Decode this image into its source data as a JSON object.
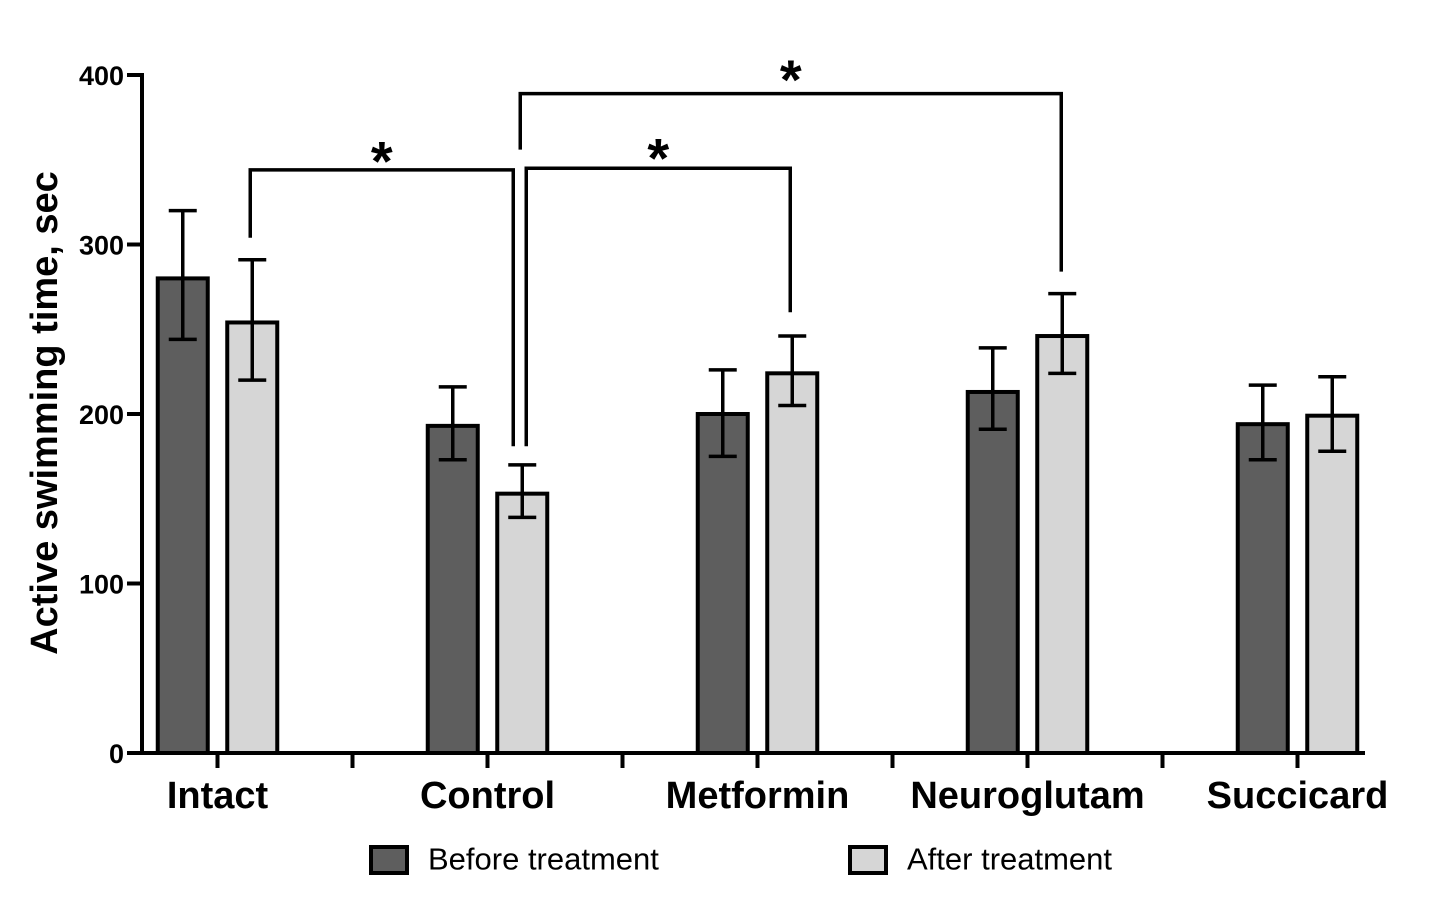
{
  "chart_data": {
    "type": "bar",
    "title": "",
    "xlabel": "",
    "ylabel": "Active swimming time, sec",
    "ylim": [
      0,
      400
    ],
    "yticks": [
      0,
      100,
      200,
      300,
      400
    ],
    "grid": false,
    "error_bars": true,
    "legend_position": "bottom",
    "background_color": "#ffffff",
    "axis_color": "#000000",
    "bar_border_color": "#000000",
    "categories": [
      "Intact",
      "Control",
      "Metformin",
      "Neuroglutam",
      "Succicard"
    ],
    "series": [
      {
        "name": "Before treatment",
        "color": "#5e5e5e",
        "values": [
          280,
          193,
          200,
          213,
          194
        ],
        "err_up": [
          40,
          23,
          26,
          26,
          23
        ],
        "err_down": [
          36,
          20,
          25,
          22,
          21
        ]
      },
      {
        "name": "After treatment",
        "color": "#d6d6d6",
        "values": [
          254,
          153,
          224,
          246,
          199
        ],
        "err_up": [
          37,
          17,
          22,
          25,
          23
        ],
        "err_down": [
          34,
          14,
          19,
          22,
          21
        ]
      }
    ],
    "significance_brackets": [
      {
        "label": "*",
        "from": {
          "category": "Intact",
          "series": "After treatment"
        },
        "to": {
          "category": "Control",
          "series": "After treatment"
        },
        "level": 344,
        "from_end": 304,
        "to_end": 181
      },
      {
        "label": "*",
        "from": {
          "category": "Control",
          "series": "After treatment"
        },
        "to": {
          "category": "Metformin",
          "series": "After treatment"
        },
        "level": 345,
        "from_end": 181,
        "to_end": 260
      },
      {
        "label": "*",
        "from": {
          "category": "Control",
          "series": "After treatment"
        },
        "to": {
          "category": "Neuroglutam",
          "series": "After treatment"
        },
        "level": 389,
        "from_end": 356,
        "to_end": 284
      }
    ]
  }
}
